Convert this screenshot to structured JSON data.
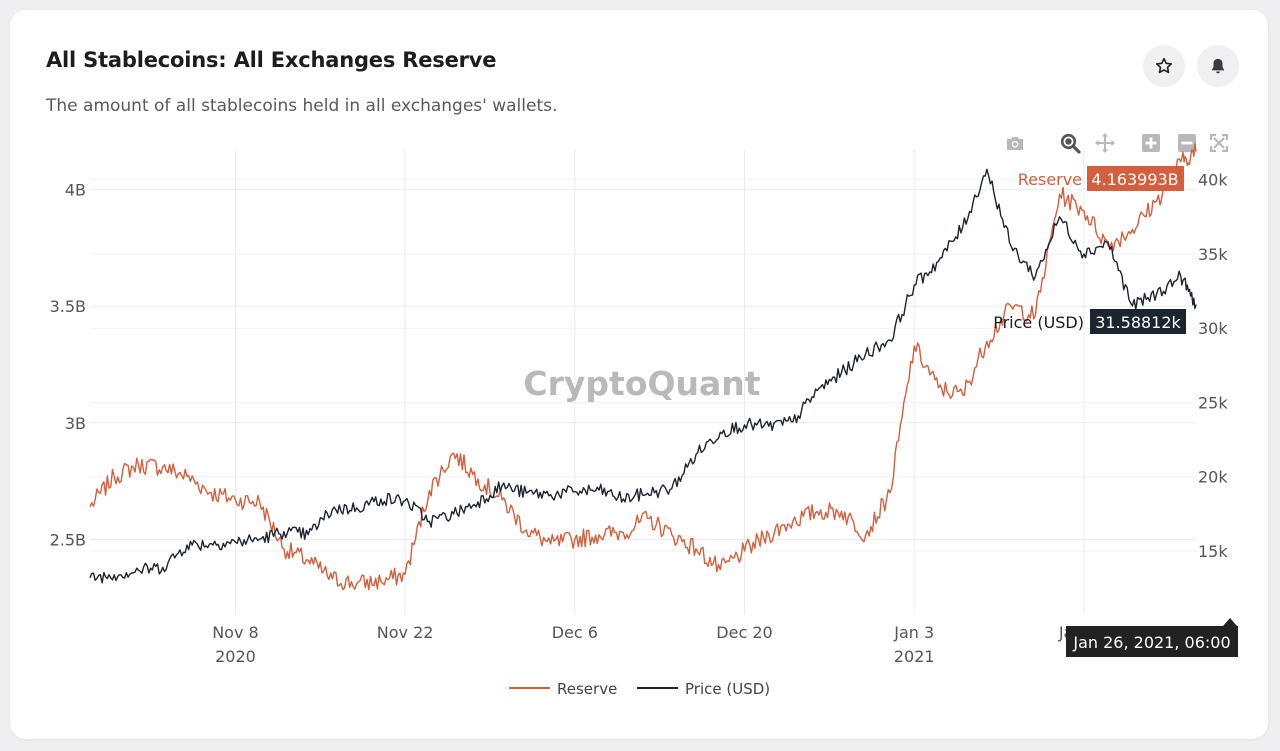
{
  "card": {
    "title": "All Stablecoins: All Exchanges Reserve",
    "subtitle": "The amount of all stablecoins held in all exchanges' wallets."
  },
  "buttons": {
    "star": "star-icon",
    "bell": "bell-icon"
  },
  "modebar": [
    "camera-icon",
    "zoom-icon",
    "pan-icon",
    "zoom-in-icon",
    "zoom-out-icon",
    "autoscale-icon"
  ],
  "watermark": "CryptoQuant",
  "colors": {
    "reserve": "#d35f3e",
    "price": "#1c2431",
    "grid": "#ebebeb",
    "axis_text": "#555555"
  },
  "hover": {
    "reserve_name": "Reserve",
    "reserve_value": "4.163993B",
    "price_name": "Price (USD)",
    "price_value": "31.58812k",
    "date": "Jan 26, 2021, 06:00"
  },
  "chart_data": {
    "type": "line",
    "title": "All Stablecoins: All Exchanges Reserve",
    "x_ticks": [
      {
        "date": "2020-11-08",
        "label": "Nov 8",
        "year": "2020"
      },
      {
        "date": "2020-11-22",
        "label": "Nov 22"
      },
      {
        "date": "2020-12-06",
        "label": "Dec 6"
      },
      {
        "date": "2020-12-20",
        "label": "Dec 20"
      },
      {
        "date": "2021-01-03",
        "label": "Jan 3",
        "year": "2021"
      },
      {
        "date": "2021-01-17",
        "label": "Jan 17"
      }
    ],
    "xlim": [
      "2020-10-27",
      "2021-01-26T06:00"
    ],
    "y_left": {
      "label": "",
      "ticks": [
        2.5,
        3,
        3.5,
        4
      ],
      "tick_labels": [
        "2.5B",
        "3B",
        "3.5B",
        "4B"
      ],
      "lim": [
        2.24,
        4.17
      ]
    },
    "y_right": {
      "label": "",
      "ticks": [
        15000,
        20000,
        25000,
        30000,
        35000,
        40000
      ],
      "tick_labels": [
        "15k",
        "20k",
        "25k",
        "30k",
        "35k",
        "40k"
      ],
      "lim": [
        11700,
        42000
      ]
    },
    "legend": {
      "placement": "bottom-center",
      "entries": [
        "Reserve",
        "Price (USD)"
      ]
    },
    "series": [
      {
        "name": "Reserve",
        "axis": "left",
        "x": [
          "2020-10-27",
          "2020-10-29",
          "2020-10-31",
          "2020-11-02",
          "2020-11-04",
          "2020-11-06",
          "2020-11-08",
          "2020-11-10",
          "2020-11-12",
          "2020-11-14",
          "2020-11-16",
          "2020-11-18",
          "2020-11-20",
          "2020-11-22",
          "2020-11-24",
          "2020-11-26",
          "2020-11-28",
          "2020-11-30",
          "2020-12-02",
          "2020-12-04",
          "2020-12-06",
          "2020-12-08",
          "2020-12-10",
          "2020-12-12",
          "2020-12-14",
          "2020-12-16",
          "2020-12-18",
          "2020-12-20",
          "2020-12-22",
          "2020-12-24",
          "2020-12-26",
          "2020-12-28",
          "2020-12-30",
          "2021-01-01",
          "2021-01-03",
          "2021-01-05",
          "2021-01-07",
          "2021-01-09",
          "2021-01-11",
          "2021-01-13",
          "2021-01-15",
          "2021-01-17",
          "2021-01-19",
          "2021-01-21",
          "2021-01-23",
          "2021-01-25",
          "2021-01-26T06:00"
        ],
        "values": [
          2.64,
          2.77,
          2.82,
          2.81,
          2.77,
          2.7,
          2.67,
          2.66,
          2.46,
          2.41,
          2.33,
          2.31,
          2.32,
          2.35,
          2.71,
          2.87,
          2.76,
          2.67,
          2.54,
          2.48,
          2.5,
          2.52,
          2.53,
          2.59,
          2.52,
          2.46,
          2.37,
          2.45,
          2.52,
          2.58,
          2.62,
          2.62,
          2.52,
          2.7,
          3.33,
          3.15,
          3.12,
          3.35,
          3.5,
          3.46,
          3.98,
          3.91,
          3.76,
          3.83,
          3.95,
          4.12,
          4.164
        ]
      },
      {
        "name": "Price (USD)",
        "axis": "right",
        "x": [
          "2020-10-27",
          "2020-10-29",
          "2020-10-31",
          "2020-11-02",
          "2020-11-04",
          "2020-11-06",
          "2020-11-08",
          "2020-11-10",
          "2020-11-12",
          "2020-11-14",
          "2020-11-16",
          "2020-11-18",
          "2020-11-20",
          "2020-11-22",
          "2020-11-24",
          "2020-11-26",
          "2020-11-28",
          "2020-11-30",
          "2020-12-02",
          "2020-12-04",
          "2020-12-06",
          "2020-12-08",
          "2020-12-10",
          "2020-12-12",
          "2020-12-14",
          "2020-12-16",
          "2020-12-18",
          "2020-12-20",
          "2020-12-22",
          "2020-12-24",
          "2020-12-26",
          "2020-12-28",
          "2020-12-30",
          "2021-01-01",
          "2021-01-03",
          "2021-01-05",
          "2021-01-07",
          "2021-01-09",
          "2021-01-11",
          "2021-01-13",
          "2021-01-15",
          "2021-01-17",
          "2021-01-19",
          "2021-01-21",
          "2021-01-23",
          "2021-01-25",
          "2021-01-26T06:00"
        ],
        "values": [
          13200,
          13400,
          13700,
          13900,
          15400,
          15500,
          15600,
          15800,
          16300,
          16100,
          17800,
          17900,
          18500,
          18400,
          17000,
          17500,
          18300,
          19400,
          18900,
          18800,
          19000,
          19100,
          18500,
          18900,
          19200,
          21500,
          23000,
          23500,
          23400,
          23700,
          25800,
          27000,
          28300,
          29200,
          32900,
          34500,
          36800,
          40700,
          35500,
          33500,
          37500,
          35000,
          35800,
          31500,
          32300,
          33500,
          31588
        ]
      }
    ]
  }
}
